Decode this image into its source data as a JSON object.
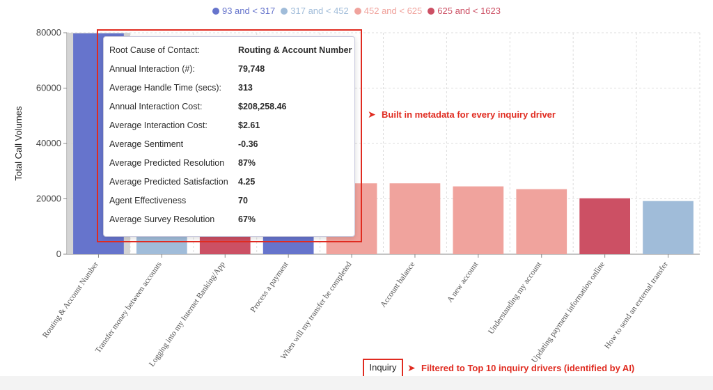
{
  "legend": [
    {
      "label": "93 and < 317",
      "color": "#6674cc"
    },
    {
      "label": "317 and < 452",
      "color": "#a0bcd9"
    },
    {
      "label": "452 and < 625",
      "color": "#f0a39d"
    },
    {
      "label": "625 and < 1623",
      "color": "#cc5064"
    }
  ],
  "tooltip": {
    "rows": [
      {
        "label": "Root Cause of Contact:",
        "value": "Routing & Account Number"
      },
      {
        "label": "Annual Interaction (#):",
        "value": "79,748"
      },
      {
        "label": "Average Handle Time (secs):",
        "value": "313"
      },
      {
        "label": "Annual Interaction Cost:",
        "value": "$208,258.46"
      },
      {
        "label": "Average Interaction Cost:",
        "value": "$2.61"
      },
      {
        "label": "Average Sentiment",
        "value": "-0.36"
      },
      {
        "label": "Average Predicted Resolution",
        "value": "87%"
      },
      {
        "label": "Average Predicted Satisfaction",
        "value": "4.25"
      },
      {
        "label": "Agent Effectiveness",
        "value": "70"
      },
      {
        "label": "Average Survey Resolution",
        "value": "67%"
      }
    ]
  },
  "annotations": {
    "metadata": "Built in metadata for every inquiry driver",
    "filter": "Filtered to Top 10 inquiry drivers (identified by AI)",
    "arrow_glyph": "➤"
  },
  "chart_data": {
    "type": "bar",
    "title": "",
    "xlabel": "Inquiry",
    "ylabel": "Total Call Volumes",
    "ylim": [
      0,
      80000
    ],
    "yticks": [
      "0",
      "20000",
      "40000",
      "60000",
      "80000"
    ],
    "grid": true,
    "legend_position": "top-center",
    "categories": [
      "Routing & Account Number",
      "Transfer money between accounts",
      "Logging into my Internet Banking/App",
      "Process a payment",
      "When will my transfer be completed",
      "Account balance",
      "A new account",
      "Understanding my account",
      "Updating payment information online",
      "How to send an external transfer"
    ],
    "values": [
      79748,
      34000,
      31000,
      30000,
      25600,
      25600,
      24500,
      23500,
      20200,
      19200
    ],
    "colors": [
      "#6674cc",
      "#a0bcd9",
      "#cc5064",
      "#6674cc",
      "#f0a39d",
      "#f0a39d",
      "#f0a39d",
      "#f0a39d",
      "#cc5064",
      "#a0bcd9"
    ]
  }
}
